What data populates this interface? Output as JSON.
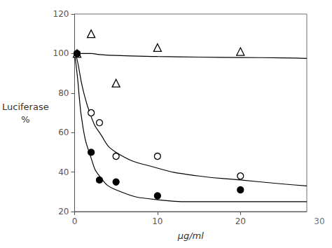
{
  "chart_data": {
    "type": "scatter",
    "title": "",
    "xlabel": "μg/ml",
    "ylabel": "Luciferase\n%",
    "xlim": [
      0,
      28
    ],
    "xticks": [
      0,
      10,
      20
    ],
    "ylim": [
      20,
      120
    ],
    "yticks": [
      20,
      40,
      60,
      80,
      100,
      120
    ],
    "grid": false,
    "annotations": [
      "30"
    ],
    "series": [
      {
        "type": "line",
        "line_style": "solid",
        "color": "#000000",
        "x": [
          0,
          0.3,
          1,
          2,
          3,
          5,
          10,
          15,
          20,
          25,
          28
        ],
        "values": [
          100,
          100,
          100,
          100,
          99.5,
          99,
          98.5,
          98.2,
          98,
          97.8,
          97.5
        ]
      },
      {
        "type": "line",
        "line_style": "solid",
        "color": "#000000",
        "x": [
          0,
          0.3,
          1,
          2,
          3,
          5,
          10,
          15,
          20,
          25,
          28
        ],
        "values": [
          100,
          97,
          82,
          68,
          60,
          50,
          42,
          38,
          36,
          34,
          33
        ]
      },
      {
        "type": "line",
        "line_style": "solid",
        "color": "#000000",
        "x": [
          0,
          0.3,
          1,
          2,
          3,
          5,
          10,
          15,
          20,
          25,
          28
        ],
        "values": [
          100,
          90,
          63,
          47,
          38,
          31,
          26,
          25,
          25,
          25,
          25
        ]
      },
      {
        "type": "scatter",
        "marker": "triangle-open",
        "color": "#000000",
        "x": [
          0.3,
          2,
          5,
          10,
          20
        ],
        "values": [
          100,
          110,
          85,
          103,
          101
        ]
      },
      {
        "type": "scatter",
        "marker": "circle-open",
        "color": "#000000",
        "x": [
          0.3,
          2,
          3,
          5,
          10,
          20
        ],
        "values": [
          100,
          70,
          65,
          48,
          48,
          38
        ]
      },
      {
        "type": "scatter",
        "marker": "circle",
        "color": "#000000",
        "x": [
          0.3,
          2,
          3,
          5,
          10,
          20
        ],
        "values": [
          100,
          50,
          36,
          35,
          28,
          31
        ]
      }
    ]
  }
}
